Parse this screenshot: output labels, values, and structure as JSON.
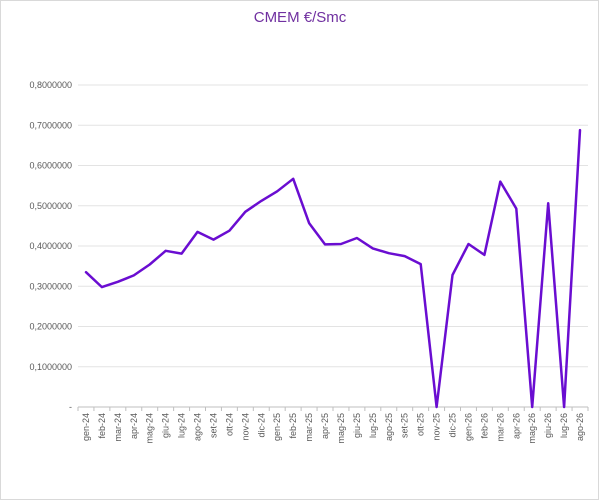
{
  "chart_data": {
    "type": "line",
    "title": "CMEM €/Smc",
    "xlabel": "",
    "ylabel": "",
    "ylim": [
      0,
      0.8
    ],
    "grid": true,
    "legend": "none",
    "line_color": "#6a0dd1",
    "y_ticks": [
      {
        "value": 0,
        "label": "-"
      },
      {
        "value": 0.1,
        "label": "0,1000000"
      },
      {
        "value": 0.2,
        "label": "0,2000000"
      },
      {
        "value": 0.3,
        "label": "0,3000000"
      },
      {
        "value": 0.4,
        "label": "0,4000000"
      },
      {
        "value": 0.5,
        "label": "0,5000000"
      },
      {
        "value": 0.6,
        "label": "0,6000000"
      },
      {
        "value": 0.7,
        "label": "0,7000000"
      },
      {
        "value": 0.8,
        "label": "0,8000000"
      }
    ],
    "categories": [
      "gen-24",
      "feb-24",
      "mar-24",
      "apr-24",
      "mag-24",
      "giu-24",
      "lug-24",
      "ago-24",
      "set-24",
      "ott-24",
      "nov-24",
      "dic-24",
      "gen-25",
      "feb-25",
      "mar-25",
      "apr-25",
      "mag-25",
      "giu-25",
      "lug-25",
      "ago-25",
      "set-25",
      "ott-25",
      "nov-25",
      "dic-25",
      "gen-26",
      "feb-26",
      "mar-26",
      "apr-26",
      "mag-26",
      "giu-26",
      "lug-26",
      "ago-26"
    ],
    "values": [
      0.335,
      0.298,
      0.311,
      0.327,
      0.354,
      0.388,
      0.381,
      0.435,
      0.416,
      0.438,
      0.485,
      0.512,
      0.536,
      0.567,
      0.457,
      0.404,
      0.405,
      0.42,
      0.394,
      0.382,
      0.375,
      0.355,
      0.0,
      0.328,
      0.405,
      0.378,
      0.56,
      0.493,
      0.0,
      0.506,
      0.0,
      0.688
    ]
  }
}
